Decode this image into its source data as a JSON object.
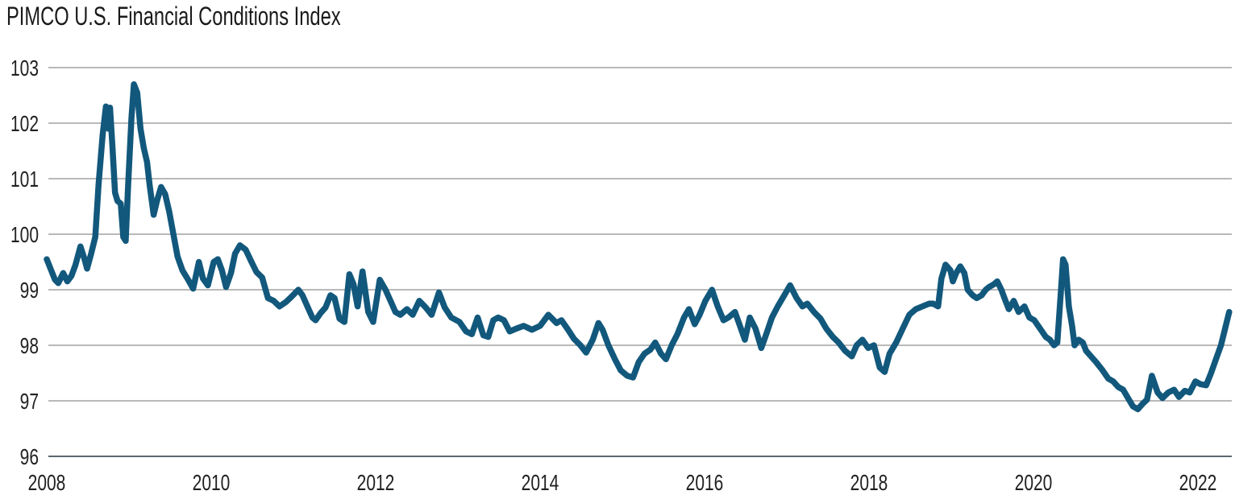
{
  "title": "PIMCO U.S. Financial Conditions Index",
  "chart_data": {
    "type": "line",
    "title": "PIMCO U.S. Financial Conditions Index",
    "xlabel": "",
    "ylabel": "",
    "xlim": [
      2008,
      2022
    ],
    "ylim": [
      96,
      103
    ],
    "x_ticks": [
      2008,
      2010,
      2012,
      2014,
      2016,
      2018,
      2020,
      2022
    ],
    "y_ticks": [
      96,
      97,
      98,
      99,
      100,
      101,
      102,
      103
    ],
    "grid": "horizontal",
    "legend": "none",
    "colors": {
      "line": "#12587c",
      "grid": "#8f8f8f",
      "axis_bottom": "#5a676f",
      "text": "#212121",
      "background": "#ffffff"
    },
    "series": [
      {
        "name": "PIMCO U.S. Financial Conditions Index",
        "points": [
          [
            2008.0,
            99.55
          ],
          [
            2008.04,
            99.4
          ],
          [
            2008.1,
            99.18
          ],
          [
            2008.14,
            99.12
          ],
          [
            2008.2,
            99.3
          ],
          [
            2008.25,
            99.15
          ],
          [
            2008.3,
            99.25
          ],
          [
            2008.35,
            99.45
          ],
          [
            2008.41,
            99.78
          ],
          [
            2008.46,
            99.55
          ],
          [
            2008.49,
            99.38
          ],
          [
            2008.54,
            99.65
          ],
          [
            2008.59,
            99.95
          ],
          [
            2008.63,
            100.9
          ],
          [
            2008.68,
            101.8
          ],
          [
            2008.72,
            102.3
          ],
          [
            2008.75,
            101.9
          ],
          [
            2008.77,
            102.28
          ],
          [
            2008.8,
            101.55
          ],
          [
            2008.83,
            100.75
          ],
          [
            2008.86,
            100.6
          ],
          [
            2008.9,
            100.55
          ],
          [
            2008.93,
            99.95
          ],
          [
            2008.96,
            99.88
          ],
          [
            2008.99,
            100.9
          ],
          [
            2009.03,
            102.1
          ],
          [
            2009.06,
            102.7
          ],
          [
            2009.1,
            102.55
          ],
          [
            2009.14,
            101.9
          ],
          [
            2009.18,
            101.55
          ],
          [
            2009.22,
            101.3
          ],
          [
            2009.25,
            100.9
          ],
          [
            2009.3,
            100.35
          ],
          [
            2009.34,
            100.6
          ],
          [
            2009.39,
            100.85
          ],
          [
            2009.44,
            100.72
          ],
          [
            2009.49,
            100.4
          ],
          [
            2009.54,
            100.0
          ],
          [
            2009.59,
            99.6
          ],
          [
            2009.65,
            99.35
          ],
          [
            2009.72,
            99.18
          ],
          [
            2009.78,
            99.02
          ],
          [
            2009.85,
            99.5
          ],
          [
            2009.9,
            99.2
          ],
          [
            2009.96,
            99.08
          ],
          [
            2010.03,
            99.5
          ],
          [
            2010.08,
            99.55
          ],
          [
            2010.13,
            99.35
          ],
          [
            2010.18,
            99.05
          ],
          [
            2010.24,
            99.3
          ],
          [
            2010.29,
            99.65
          ],
          [
            2010.35,
            99.8
          ],
          [
            2010.42,
            99.72
          ],
          [
            2010.49,
            99.5
          ],
          [
            2010.55,
            99.32
          ],
          [
            2010.62,
            99.22
          ],
          [
            2010.69,
            98.85
          ],
          [
            2010.76,
            98.8
          ],
          [
            2010.83,
            98.7
          ],
          [
            2010.91,
            98.78
          ],
          [
            2010.98,
            98.88
          ],
          [
            2011.06,
            99.0
          ],
          [
            2011.11,
            98.9
          ],
          [
            2011.17,
            98.7
          ],
          [
            2011.23,
            98.5
          ],
          [
            2011.27,
            98.45
          ],
          [
            2011.33,
            98.58
          ],
          [
            2011.39,
            98.68
          ],
          [
            2011.45,
            98.9
          ],
          [
            2011.5,
            98.85
          ],
          [
            2011.56,
            98.48
          ],
          [
            2011.62,
            98.42
          ],
          [
            2011.68,
            99.28
          ],
          [
            2011.73,
            99.1
          ],
          [
            2011.78,
            98.7
          ],
          [
            2011.84,
            99.33
          ],
          [
            2011.91,
            98.6
          ],
          [
            2011.97,
            98.42
          ],
          [
            2012.05,
            99.18
          ],
          [
            2012.12,
            99.0
          ],
          [
            2012.18,
            98.8
          ],
          [
            2012.24,
            98.6
          ],
          [
            2012.3,
            98.55
          ],
          [
            2012.38,
            98.65
          ],
          [
            2012.45,
            98.55
          ],
          [
            2012.53,
            98.8
          ],
          [
            2012.61,
            98.68
          ],
          [
            2012.68,
            98.55
          ],
          [
            2012.77,
            98.95
          ],
          [
            2012.84,
            98.68
          ],
          [
            2012.92,
            98.5
          ],
          [
            2013.02,
            98.42
          ],
          [
            2013.1,
            98.25
          ],
          [
            2013.17,
            98.2
          ],
          [
            2013.24,
            98.5
          ],
          [
            2013.31,
            98.18
          ],
          [
            2013.37,
            98.15
          ],
          [
            2013.43,
            98.45
          ],
          [
            2013.49,
            98.5
          ],
          [
            2013.56,
            98.45
          ],
          [
            2013.63,
            98.25
          ],
          [
            2013.71,
            98.3
          ],
          [
            2013.8,
            98.35
          ],
          [
            2013.9,
            98.28
          ],
          [
            2014.0,
            98.35
          ],
          [
            2014.1,
            98.55
          ],
          [
            2014.2,
            98.4
          ],
          [
            2014.26,
            98.45
          ],
          [
            2014.34,
            98.28
          ],
          [
            2014.41,
            98.12
          ],
          [
            2014.49,
            98.0
          ],
          [
            2014.56,
            97.87
          ],
          [
            2014.64,
            98.1
          ],
          [
            2014.71,
            98.4
          ],
          [
            2014.76,
            98.28
          ],
          [
            2014.83,
            98.0
          ],
          [
            2014.91,
            97.75
          ],
          [
            2014.98,
            97.55
          ],
          [
            2015.06,
            97.45
          ],
          [
            2015.13,
            97.42
          ],
          [
            2015.2,
            97.7
          ],
          [
            2015.27,
            97.85
          ],
          [
            2015.34,
            97.92
          ],
          [
            2015.4,
            98.05
          ],
          [
            2015.47,
            97.85
          ],
          [
            2015.53,
            97.75
          ],
          [
            2015.6,
            98.0
          ],
          [
            2015.67,
            98.2
          ],
          [
            2015.75,
            98.5
          ],
          [
            2015.81,
            98.65
          ],
          [
            2015.88,
            98.38
          ],
          [
            2015.94,
            98.55
          ],
          [
            2016.01,
            98.8
          ],
          [
            2016.09,
            99.0
          ],
          [
            2016.16,
            98.7
          ],
          [
            2016.23,
            98.45
          ],
          [
            2016.29,
            98.5
          ],
          [
            2016.37,
            98.6
          ],
          [
            2016.43,
            98.35
          ],
          [
            2016.49,
            98.1
          ],
          [
            2016.55,
            98.5
          ],
          [
            2016.62,
            98.3
          ],
          [
            2016.69,
            97.95
          ],
          [
            2016.75,
            98.2
          ],
          [
            2016.82,
            98.5
          ],
          [
            2016.89,
            98.7
          ],
          [
            2016.97,
            98.9
          ],
          [
            2017.04,
            99.08
          ],
          [
            2017.12,
            98.85
          ],
          [
            2017.19,
            98.7
          ],
          [
            2017.25,
            98.75
          ],
          [
            2017.33,
            98.6
          ],
          [
            2017.41,
            98.48
          ],
          [
            2017.48,
            98.3
          ],
          [
            2017.56,
            98.15
          ],
          [
            2017.63,
            98.05
          ],
          [
            2017.71,
            97.9
          ],
          [
            2017.79,
            97.8
          ],
          [
            2017.85,
            98.0
          ],
          [
            2017.92,
            98.1
          ],
          [
            2017.99,
            97.95
          ],
          [
            2018.06,
            98.0
          ],
          [
            2018.13,
            97.6
          ],
          [
            2018.19,
            97.52
          ],
          [
            2018.25,
            97.85
          ],
          [
            2018.33,
            98.05
          ],
          [
            2018.41,
            98.3
          ],
          [
            2018.49,
            98.55
          ],
          [
            2018.57,
            98.65
          ],
          [
            2018.65,
            98.7
          ],
          [
            2018.73,
            98.75
          ],
          [
            2018.78,
            98.75
          ],
          [
            2018.84,
            98.7
          ],
          [
            2018.88,
            99.2
          ],
          [
            2018.93,
            99.45
          ],
          [
            2018.99,
            99.35
          ],
          [
            2019.02,
            99.15
          ],
          [
            2019.06,
            99.3
          ],
          [
            2019.11,
            99.42
          ],
          [
            2019.16,
            99.3
          ],
          [
            2019.2,
            99.0
          ],
          [
            2019.26,
            98.9
          ],
          [
            2019.31,
            98.85
          ],
          [
            2019.37,
            98.9
          ],
          [
            2019.42,
            99.0
          ],
          [
            2019.46,
            99.05
          ],
          [
            2019.52,
            99.1
          ],
          [
            2019.56,
            99.15
          ],
          [
            2019.61,
            99.0
          ],
          [
            2019.66,
            98.8
          ],
          [
            2019.7,
            98.65
          ],
          [
            2019.76,
            98.8
          ],
          [
            2019.82,
            98.6
          ],
          [
            2019.89,
            98.7
          ],
          [
            2019.95,
            98.5
          ],
          [
            2020.01,
            98.45
          ],
          [
            2020.08,
            98.3
          ],
          [
            2020.15,
            98.15
          ],
          [
            2020.2,
            98.1
          ],
          [
            2020.25,
            98.0
          ],
          [
            2020.29,
            98.05
          ],
          [
            2020.33,
            98.9
          ],
          [
            2020.36,
            99.55
          ],
          [
            2020.39,
            99.45
          ],
          [
            2020.43,
            98.7
          ],
          [
            2020.47,
            98.35
          ],
          [
            2020.5,
            98.0
          ],
          [
            2020.55,
            98.1
          ],
          [
            2020.6,
            98.05
          ],
          [
            2020.64,
            97.9
          ],
          [
            2020.7,
            97.8
          ],
          [
            2020.76,
            97.7
          ],
          [
            2020.84,
            97.55
          ],
          [
            2020.91,
            97.4
          ],
          [
            2020.97,
            97.35
          ],
          [
            2021.03,
            97.25
          ],
          [
            2021.09,
            97.2
          ],
          [
            2021.15,
            97.05
          ],
          [
            2021.21,
            96.9
          ],
          [
            2021.27,
            96.85
          ],
          [
            2021.33,
            96.95
          ],
          [
            2021.38,
            97.02
          ],
          [
            2021.44,
            97.45
          ],
          [
            2021.51,
            97.15
          ],
          [
            2021.57,
            97.05
          ],
          [
            2021.64,
            97.15
          ],
          [
            2021.71,
            97.2
          ],
          [
            2021.77,
            97.07
          ],
          [
            2021.84,
            97.18
          ],
          [
            2021.9,
            97.15
          ],
          [
            2021.97,
            97.35
          ],
          [
            2022.03,
            97.3
          ],
          [
            2022.1,
            97.28
          ],
          [
            2022.16,
            97.5
          ],
          [
            2022.22,
            97.75
          ],
          [
            2022.28,
            98.0
          ],
          [
            2022.33,
            98.3
          ],
          [
            2022.38,
            98.6
          ]
        ]
      }
    ]
  }
}
